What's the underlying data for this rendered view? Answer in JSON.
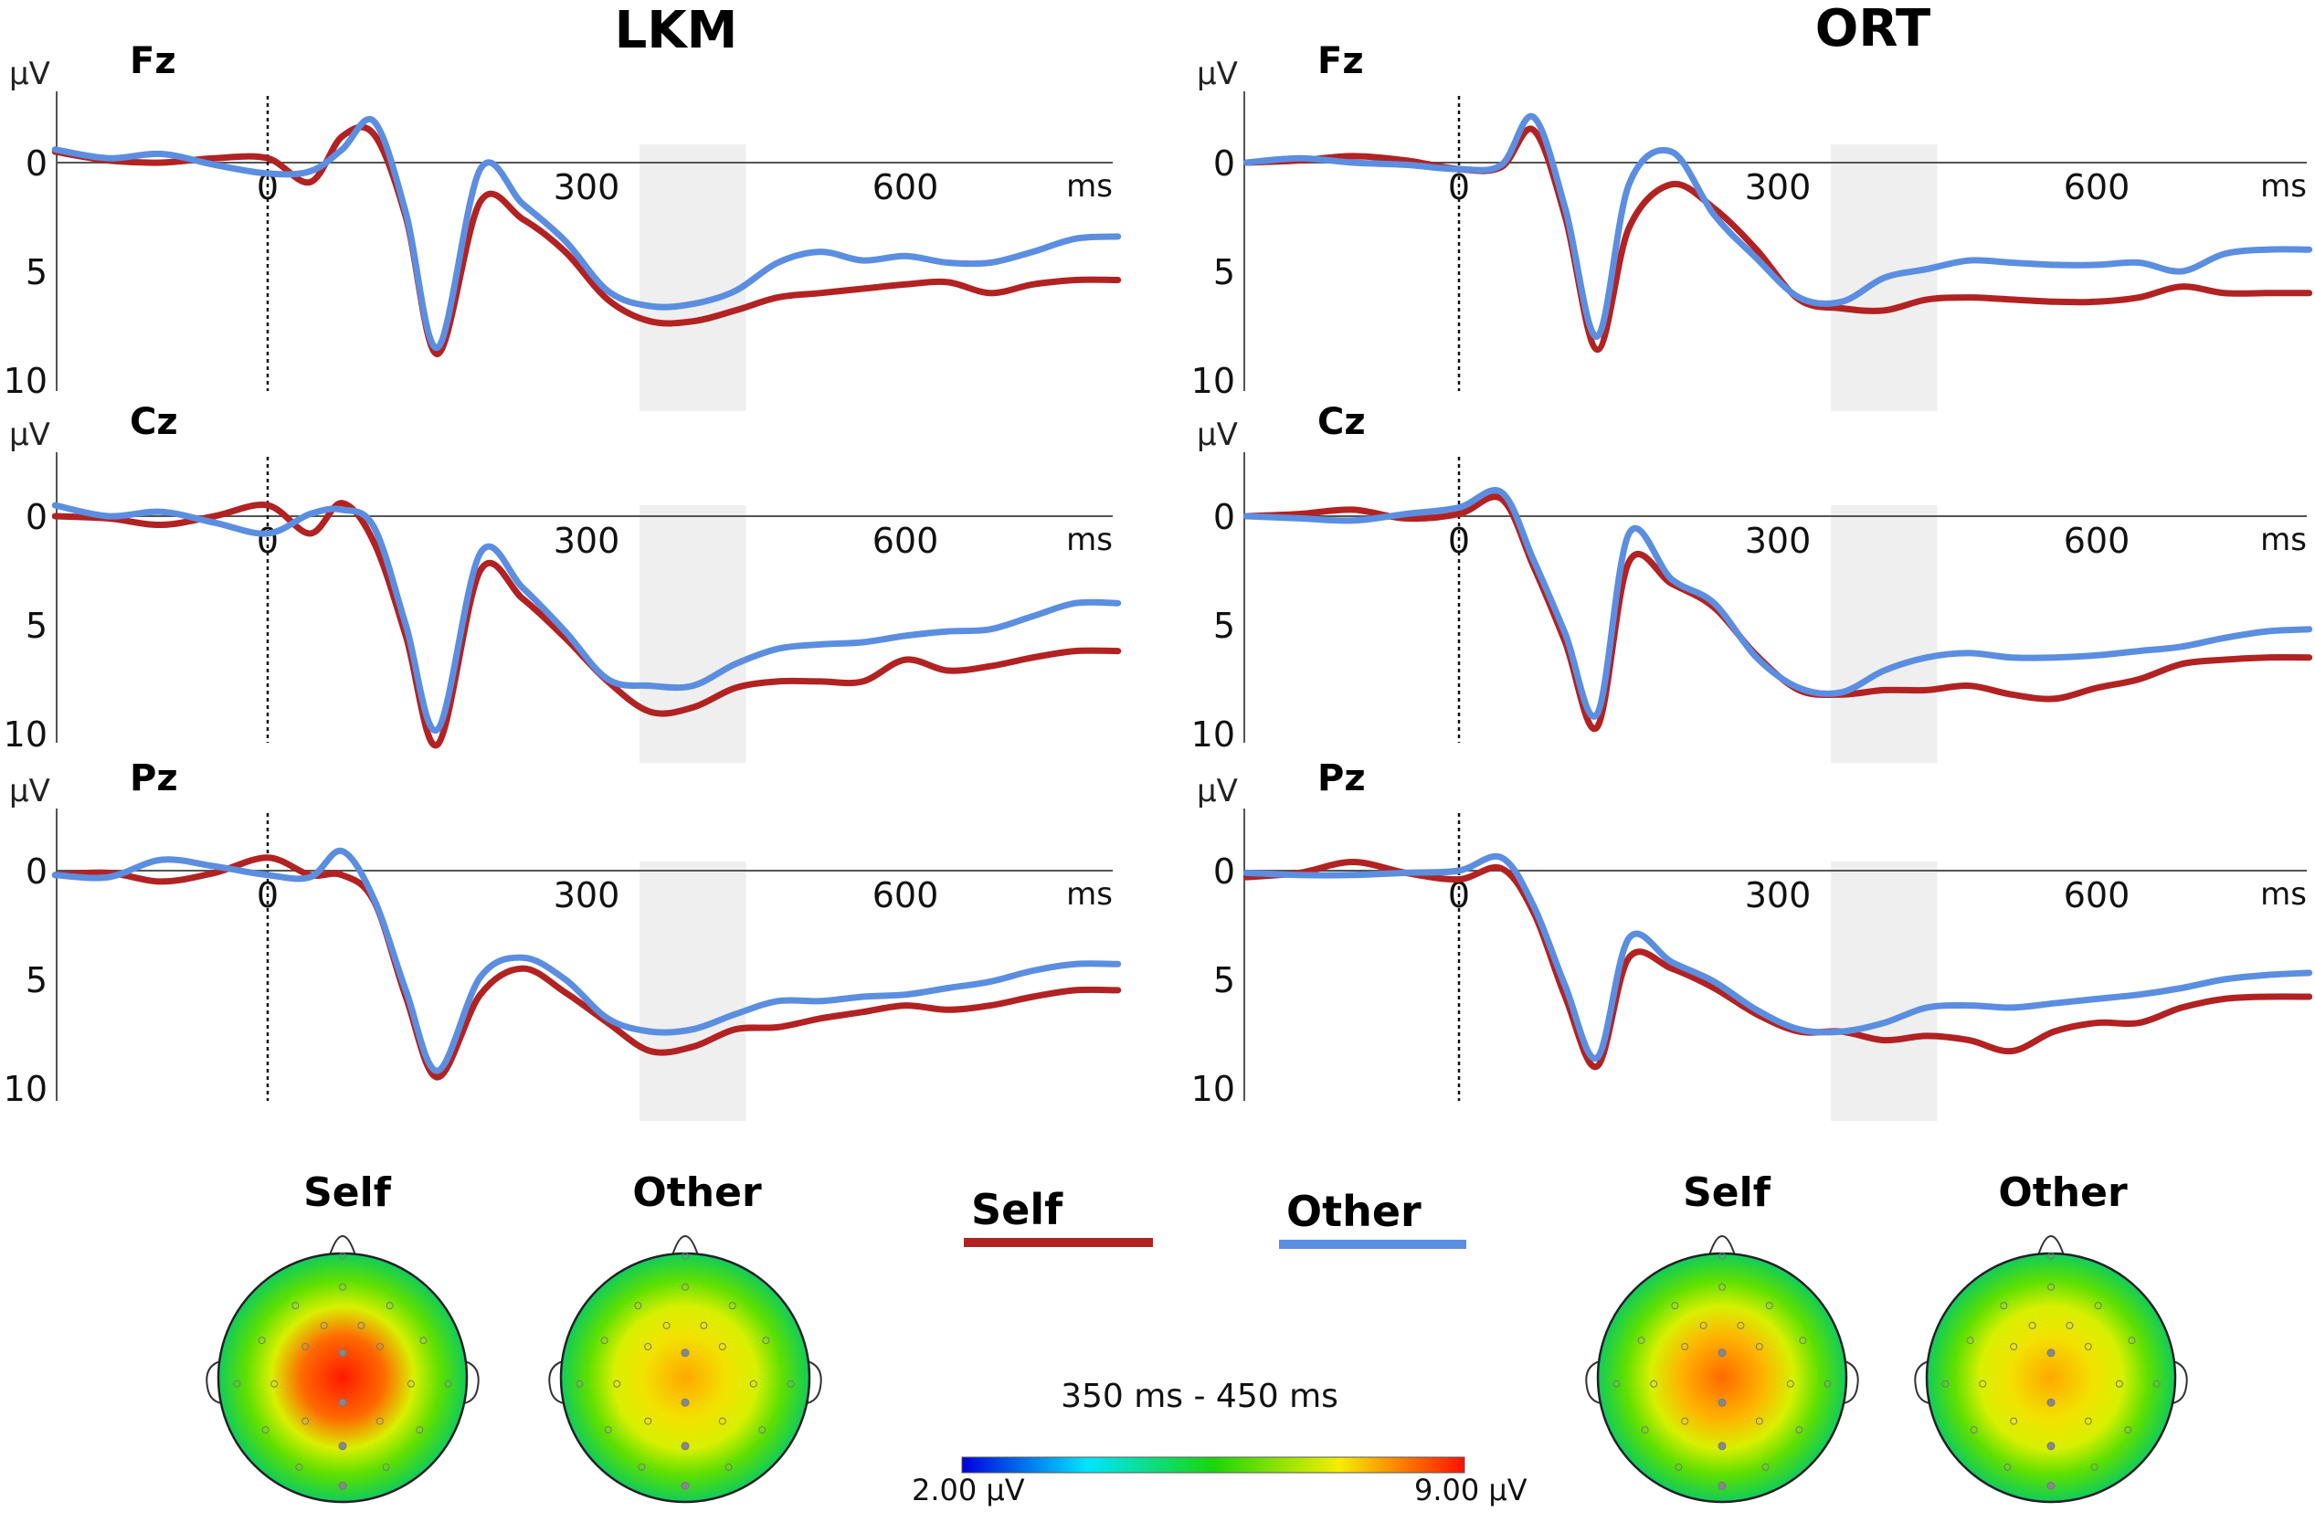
{
  "colors": {
    "self": "#b22222",
    "other": "#5b8ee0",
    "window": "#efefef",
    "axis": "#555555"
  },
  "legend": {
    "self": "Self",
    "other": "Other"
  },
  "scalp_maps": {
    "window_label": "350 ms - 450 ms",
    "scale_min": "2.00 µV",
    "scale_max": "9.00 µV",
    "maps": [
      {
        "group": "LKM",
        "condition": "Self",
        "peak_intensity": 1.0
      },
      {
        "group": "LKM",
        "condition": "Other",
        "peak_intensity": 0.72
      },
      {
        "group": "ORT",
        "condition": "Self",
        "peak_intensity": 0.88
      },
      {
        "group": "ORT",
        "condition": "Other",
        "peak_intensity": 0.72
      }
    ]
  },
  "chart_data": {
    "type": "line",
    "groups": [
      "LKM",
      "ORT"
    ],
    "electrodes": [
      "Fz",
      "Cz",
      "Pz"
    ],
    "y_unit": "µV",
    "x_unit": "ms",
    "xlim": [
      -200,
      800
    ],
    "ylim": [
      -3,
      10
    ],
    "y_inverted": true,
    "yticks": [
      0,
      5,
      10
    ],
    "xticks": [
      0,
      300,
      600
    ],
    "analysis_window_ms": [
      350,
      450
    ],
    "x": [
      -200,
      -150,
      -100,
      -50,
      0,
      40,
      70,
      100,
      130,
      160,
      200,
      240,
      280,
      320,
      360,
      400,
      440,
      480,
      520,
      560,
      600,
      640,
      680,
      720,
      760,
      800
    ],
    "panels": [
      {
        "group": "LKM",
        "electrode": "Fz",
        "series": [
          {
            "name": "Self",
            "values": [
              -0.5,
              -0.1,
              0,
              -0.2,
              -0.2,
              0.9,
              -1.2,
              -1.3,
              2.5,
              8.8,
              1.8,
              2.6,
              4.1,
              6.3,
              7.3,
              7.3,
              6.8,
              6.2,
              6.0,
              5.8,
              5.6,
              5.5,
              6.0,
              5.6,
              5.4,
              5.4
            ]
          },
          {
            "name": "Other",
            "values": [
              -0.6,
              -0.2,
              -0.4,
              0.1,
              0.5,
              0.4,
              -0.6,
              -1.9,
              2.3,
              8.5,
              0.3,
              1.9,
              3.6,
              5.9,
              6.6,
              6.5,
              5.9,
              4.6,
              4.1,
              4.5,
              4.3,
              4.6,
              4.6,
              4.1,
              3.5,
              3.4
            ]
          }
        ]
      },
      {
        "group": "LKM",
        "electrode": "Cz",
        "series": [
          {
            "name": "Self",
            "values": [
              0,
              0.1,
              0.4,
              0,
              -0.5,
              0.8,
              -0.6,
              1.2,
              5.5,
              10.5,
              2.5,
              3.8,
              5.6,
              7.6,
              9.0,
              8.8,
              7.9,
              7.6,
              7.6,
              7.6,
              6.6,
              7.1,
              6.9,
              6.5,
              6.2,
              6.2
            ]
          },
          {
            "name": "Other",
            "values": [
              -0.5,
              0,
              -0.2,
              0.3,
              0.8,
              -0.1,
              -0.3,
              0.5,
              5.0,
              9.8,
              1.7,
              3.3,
              5.3,
              7.5,
              7.8,
              7.8,
              6.8,
              6.1,
              5.9,
              5.8,
              5.5,
              5.3,
              5.2,
              4.6,
              4.0,
              4.0
            ]
          }
        ]
      },
      {
        "group": "LKM",
        "electrode": "Pz",
        "series": [
          {
            "name": "Self",
            "values": [
              0.2,
              0.1,
              0.5,
              0.1,
              -0.6,
              0.2,
              0.2,
              1.4,
              5.8,
              9.5,
              5.7,
              4.5,
              5.6,
              7.0,
              8.3,
              8.1,
              7.3,
              7.2,
              6.8,
              6.5,
              6.2,
              6.4,
              6.2,
              5.8,
              5.5,
              5.5
            ]
          },
          {
            "name": "Other",
            "values": [
              0.2,
              0.3,
              -0.5,
              -0.2,
              0.2,
              0.3,
              -0.9,
              1.3,
              5.5,
              9.2,
              4.9,
              4.0,
              5.0,
              6.8,
              7.4,
              7.3,
              6.6,
              6.0,
              6.0,
              5.8,
              5.7,
              5.4,
              5.1,
              4.6,
              4.3,
              4.3
            ]
          }
        ]
      },
      {
        "group": "ORT",
        "electrode": "Fz",
        "series": [
          {
            "name": "Self",
            "values": [
              0,
              -0.1,
              -0.3,
              -0.1,
              0.3,
              0.2,
              -1.5,
              2.5,
              8.6,
              3.0,
              1.0,
              2.1,
              4.0,
              6.3,
              6.7,
              6.8,
              6.3,
              6.2,
              6.3,
              6.4,
              6.4,
              6.2,
              5.7,
              6.0,
              6.0,
              6.0
            ]
          },
          {
            "name": "Other",
            "values": [
              0,
              -0.2,
              0,
              0.1,
              0.3,
              0.1,
              -2.1,
              2.1,
              8.0,
              1.0,
              -0.5,
              2.4,
              4.4,
              6.2,
              6.4,
              5.3,
              4.9,
              4.5,
              4.6,
              4.7,
              4.7,
              4.6,
              5.0,
              4.2,
              4.0,
              4.0
            ]
          }
        ]
      },
      {
        "group": "ORT",
        "electrode": "Cz",
        "series": [
          {
            "name": "Self",
            "values": [
              0,
              -0.1,
              -0.3,
              0.1,
              -0.1,
              -0.8,
              2.3,
              5.8,
              9.7,
              2.1,
              3.1,
              4.2,
              6.4,
              8.0,
              8.2,
              8.0,
              8.0,
              7.8,
              8.2,
              8.4,
              7.9,
              7.5,
              6.8,
              6.6,
              6.5,
              6.5
            ]
          },
          {
            "name": "Other",
            "values": [
              0,
              0.1,
              0.2,
              -0.1,
              -0.4,
              -1.1,
              2.0,
              5.4,
              9.1,
              0.8,
              2.9,
              4.0,
              6.5,
              7.9,
              8.1,
              7.1,
              6.5,
              6.3,
              6.5,
              6.5,
              6.4,
              6.2,
              6.0,
              5.6,
              5.3,
              5.2
            ]
          }
        ]
      },
      {
        "group": "ORT",
        "electrode": "Pz",
        "series": [
          {
            "name": "Self",
            "values": [
              0.3,
              0.1,
              -0.4,
              0.1,
              0.4,
              -0.1,
              1.9,
              5.8,
              9.0,
              4.0,
              4.5,
              5.4,
              6.6,
              7.4,
              7.4,
              7.8,
              7.6,
              7.8,
              8.3,
              7.4,
              7.0,
              7.0,
              6.3,
              5.9,
              5.8,
              5.8
            ]
          },
          {
            "name": "Other",
            "values": [
              0.1,
              0.2,
              0.2,
              0.1,
              0,
              -0.6,
              1.6,
              5.3,
              8.6,
              3.1,
              4.2,
              5.1,
              6.4,
              7.3,
              7.4,
              7.0,
              6.3,
              6.2,
              6.3,
              6.1,
              5.9,
              5.7,
              5.4,
              5.0,
              4.8,
              4.7
            ]
          }
        ]
      }
    ]
  }
}
